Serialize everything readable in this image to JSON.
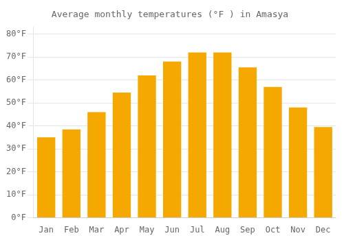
{
  "chart_data": {
    "type": "bar",
    "title": "Average monthly temperatures (°F ) in Amasya",
    "categories": [
      "Jan",
      "Feb",
      "Mar",
      "Apr",
      "May",
      "Jun",
      "Jul",
      "Aug",
      "Sep",
      "Oct",
      "Nov",
      "Dec"
    ],
    "values": [
      35,
      38.5,
      46,
      54.5,
      62,
      68,
      72,
      72,
      65.5,
      57,
      48,
      39.5
    ],
    "color": "#F5A800",
    "ylim": [
      0,
      83
    ],
    "yticks": [
      {
        "value": 0,
        "label": "0°F"
      },
      {
        "value": 10,
        "label": "10°F"
      },
      {
        "value": 20,
        "label": "20°F"
      },
      {
        "value": 30,
        "label": "30°F"
      },
      {
        "value": 40,
        "label": "40°F"
      },
      {
        "value": 50,
        "label": "50°F"
      },
      {
        "value": 60,
        "label": "60°F"
      },
      {
        "value": 70,
        "label": "70°F"
      },
      {
        "value": 80,
        "label": "80°F"
      }
    ],
    "grid": true
  }
}
